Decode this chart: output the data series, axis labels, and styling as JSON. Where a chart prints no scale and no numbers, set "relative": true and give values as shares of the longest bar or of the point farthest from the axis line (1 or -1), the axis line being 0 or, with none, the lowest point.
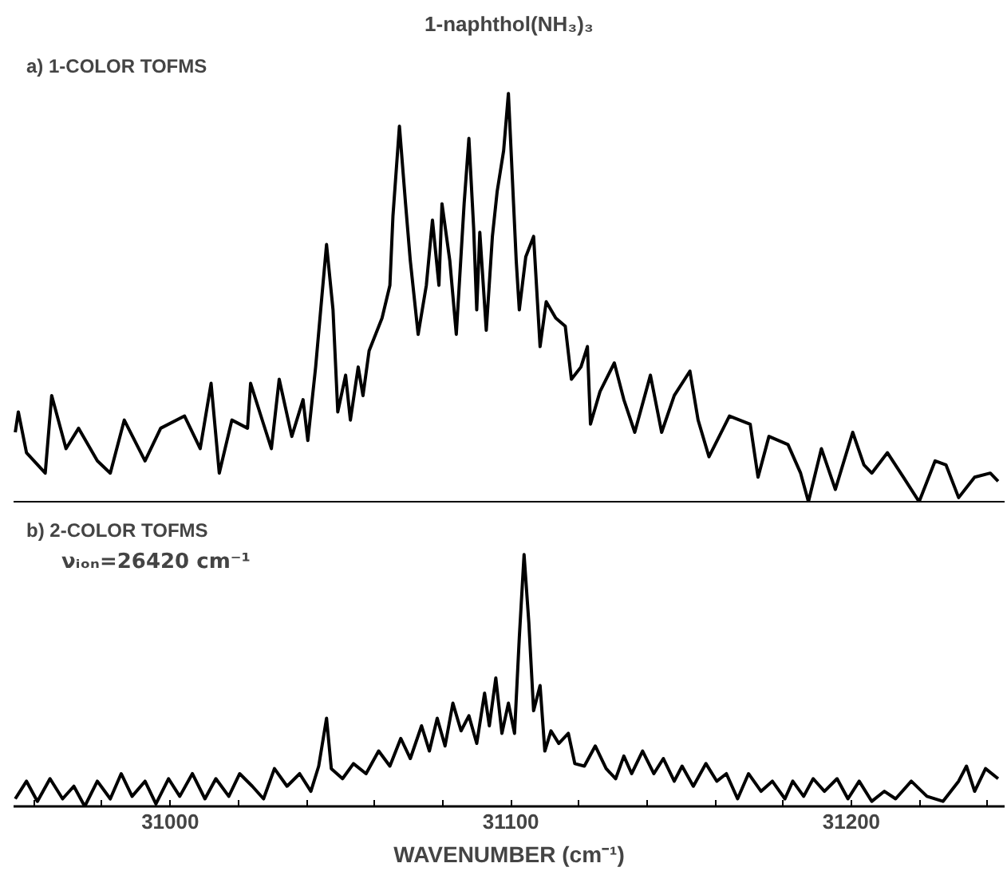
{
  "chart_data": [
    {
      "type": "line",
      "title": "1-naphthol(NH₃)₃",
      "subtitle": "a) 1-COLOR TOFMS",
      "relative": true,
      "tick_labels": false,
      "xlim": [
        30954,
        31245
      ],
      "series": [
        {
          "color": "#000000",
          "x": [
            30954.5,
            30955.4,
            30957.8,
            30963.3,
            30965.2,
            30969.4,
            30973.1,
            30978.6,
            30982.4,
            30986.5,
            30992.6,
            30997.2,
            31004.2,
            31008.8,
            31012.0,
            31014.4,
            31018.1,
            31022.7,
            31023.6,
            31027.4,
            31029.7,
            31032.0,
            31035.7,
            31039.0,
            31040.4,
            31042.7,
            31044.5,
            31045.9,
            31047.8,
            31049.2,
            31051.5,
            31052.9,
            31055.2,
            31056.6,
            31058.4,
            31062.2,
            31064.5,
            31065.4,
            31067.3,
            31069.1,
            31070.5,
            31072.8,
            31075.2,
            31077.0,
            31078.9,
            31079.8,
            31082.1,
            31084.0,
            31086.3,
            31087.7,
            31089.1,
            31090.0,
            31090.9,
            31092.8,
            31094.6,
            31096.0,
            31097.9,
            31099.3,
            31100.7,
            31101.6,
            31102.5,
            31104.4,
            31106.7,
            31108.6,
            31110.4,
            31113.2,
            31116.0,
            31117.8,
            31120.6,
            31122.5,
            31123.4,
            31126.2,
            31130.4,
            31133.2,
            31136.4,
            31141.0,
            31144.3,
            31148.0,
            31152.6,
            31155.0,
            31158.2,
            31164.2,
            31170.3,
            31172.6,
            31175.8,
            31181.4,
            31185.1,
            31187.4,
            31191.2,
            31195.3,
            31200.4,
            31203.7,
            31206.0,
            31210.6,
            31215.3,
            31219.9,
            31224.6,
            31227.8,
            31231.5,
            31236.2,
            31240.8,
            31243.1
          ],
          "values": [
            0.17,
            0.22,
            0.12,
            0.07,
            0.26,
            0.13,
            0.18,
            0.1,
            0.07,
            0.2,
            0.1,
            0.18,
            0.21,
            0.13,
            0.29,
            0.07,
            0.2,
            0.18,
            0.29,
            0.19,
            0.13,
            0.3,
            0.16,
            0.25,
            0.15,
            0.33,
            0.5,
            0.63,
            0.47,
            0.22,
            0.31,
            0.2,
            0.33,
            0.26,
            0.37,
            0.45,
            0.53,
            0.7,
            0.92,
            0.73,
            0.59,
            0.41,
            0.53,
            0.69,
            0.53,
            0.73,
            0.59,
            0.41,
            0.73,
            0.89,
            0.67,
            0.47,
            0.66,
            0.42,
            0.65,
            0.76,
            0.86,
            1.0,
            0.75,
            0.59,
            0.47,
            0.6,
            0.65,
            0.38,
            0.49,
            0.45,
            0.43,
            0.3,
            0.33,
            0.38,
            0.19,
            0.27,
            0.34,
            0.25,
            0.17,
            0.31,
            0.17,
            0.26,
            0.32,
            0.2,
            0.11,
            0.21,
            0.19,
            0.06,
            0.16,
            0.14,
            0.07,
            0.0,
            0.13,
            0.03,
            0.17,
            0.09,
            0.07,
            0.12,
            0.06,
            0.0,
            0.1,
            0.09,
            0.01,
            0.06,
            0.07,
            0.05
          ]
        }
      ]
    },
    {
      "type": "line",
      "subtitle": "b) 2-COLOR TOFMS",
      "annotations": [
        "νᵢₒₙ=26420 cm⁻¹"
      ],
      "xlabel": "WAVENUMBER (cm⁻¹)",
      "relative": true,
      "xlim": [
        30954,
        31245
      ],
      "xticks": [
        {
          "value": 30960,
          "label": null
        },
        {
          "value": 30980,
          "label": null
        },
        31000,
        {
          "value": 31020,
          "label": null
        },
        {
          "value": 31040,
          "label": null
        },
        {
          "value": 31060,
          "label": null
        },
        {
          "value": 31080,
          "label": null
        },
        31100,
        {
          "value": 31120,
          "label": null
        },
        {
          "value": 31140,
          "label": null
        },
        {
          "value": 31160,
          "label": null
        },
        {
          "value": 31180,
          "label": null
        },
        31200,
        {
          "value": 31220,
          "label": null
        },
        {
          "value": 31240,
          "label": null
        }
      ],
      "series": [
        {
          "color": "#000000",
          "x": [
            30954.5,
            30957.8,
            30961.0,
            30964.7,
            30968.4,
            30971.7,
            30974.9,
            30978.6,
            30982.4,
            30985.6,
            30988.8,
            30992.6,
            30995.8,
            30999.5,
            31002.8,
            31006.5,
            31010.2,
            31013.4,
            31017.2,
            31020.4,
            31024.1,
            31027.4,
            31030.6,
            31034.3,
            31038.0,
            31041.3,
            31043.6,
            31045.9,
            31047.3,
            31050.6,
            31053.8,
            31057.5,
            31061.2,
            31064.5,
            31067.7,
            31070.5,
            31073.8,
            31076.1,
            31078.4,
            31080.7,
            31083.0,
            31085.4,
            31087.7,
            31090.0,
            31092.3,
            31093.7,
            31095.6,
            31097.4,
            31099.3,
            31101.1,
            31102.5,
            31103.9,
            31105.3,
            31106.7,
            31108.6,
            31110.0,
            31111.8,
            31114.1,
            31116.9,
            31118.8,
            31121.6,
            31124.8,
            31128.0,
            31130.8,
            31133.2,
            31135.5,
            31138.7,
            31142.0,
            31144.8,
            31148.0,
            31150.3,
            31153.6,
            31157.3,
            31160.5,
            31163.3,
            31166.6,
            31169.8,
            31173.5,
            31176.8,
            31180.5,
            31182.8,
            31186.0,
            31188.8,
            31192.1,
            31195.8,
            31199.0,
            31202.3,
            31206.0,
            31209.7,
            31213.0,
            31217.6,
            31222.2,
            31226.9,
            31231.5,
            31233.8,
            31236.2,
            31239.4,
            31243.1
          ],
          "values": [
            0.03,
            0.1,
            0.02,
            0.11,
            0.03,
            0.08,
            0.0,
            0.1,
            0.03,
            0.13,
            0.04,
            0.1,
            0.01,
            0.11,
            0.04,
            0.13,
            0.03,
            0.11,
            0.04,
            0.13,
            0.08,
            0.03,
            0.15,
            0.08,
            0.13,
            0.06,
            0.16,
            0.35,
            0.15,
            0.11,
            0.17,
            0.13,
            0.22,
            0.16,
            0.27,
            0.19,
            0.32,
            0.22,
            0.35,
            0.24,
            0.41,
            0.3,
            0.36,
            0.25,
            0.45,
            0.32,
            0.51,
            0.29,
            0.41,
            0.29,
            0.67,
            1.0,
            0.73,
            0.38,
            0.48,
            0.22,
            0.3,
            0.25,
            0.29,
            0.17,
            0.16,
            0.24,
            0.15,
            0.11,
            0.2,
            0.13,
            0.22,
            0.13,
            0.19,
            0.1,
            0.16,
            0.08,
            0.17,
            0.1,
            0.13,
            0.03,
            0.13,
            0.06,
            0.1,
            0.03,
            0.1,
            0.04,
            0.11,
            0.06,
            0.11,
            0.03,
            0.1,
            0.02,
            0.06,
            0.03,
            0.1,
            0.04,
            0.02,
            0.1,
            0.16,
            0.06,
            0.15,
            0.11
          ]
        }
      ]
    }
  ]
}
